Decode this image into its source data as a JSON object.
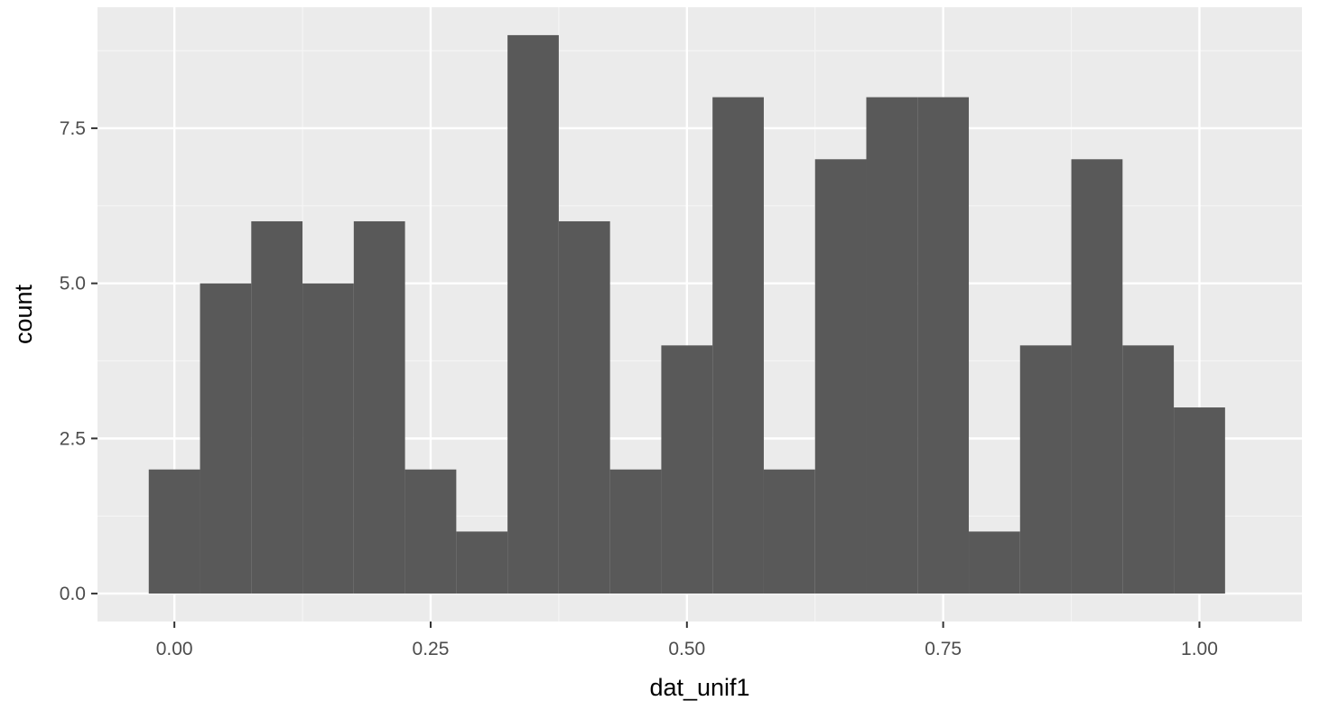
{
  "chart_data": {
    "type": "bar",
    "histogram": true,
    "xlabel": "dat_unif1",
    "ylabel": "count",
    "xlim": [
      -0.075,
      1.1
    ],
    "ylim": [
      -0.45,
      9.45
    ],
    "x_ticks": [
      0.0,
      0.25,
      0.5,
      0.75,
      1.0
    ],
    "x_tick_labels": [
      "0.00",
      "0.25",
      "0.50",
      "0.75",
      "1.00"
    ],
    "y_ticks": [
      0.0,
      2.5,
      5.0,
      7.5
    ],
    "y_tick_labels": [
      "0.0",
      "2.5",
      "5.0",
      "7.5"
    ],
    "bin_width": 0.05,
    "bins": [
      {
        "x0": -0.025,
        "x1": 0.025,
        "count": 2
      },
      {
        "x0": 0.025,
        "x1": 0.075,
        "count": 5
      },
      {
        "x0": 0.075,
        "x1": 0.125,
        "count": 6
      },
      {
        "x0": 0.125,
        "x1": 0.175,
        "count": 5
      },
      {
        "x0": 0.175,
        "x1": 0.225,
        "count": 6
      },
      {
        "x0": 0.225,
        "x1": 0.275,
        "count": 2
      },
      {
        "x0": 0.275,
        "x1": 0.325,
        "count": 1
      },
      {
        "x0": 0.325,
        "x1": 0.375,
        "count": 9
      },
      {
        "x0": 0.375,
        "x1": 0.425,
        "count": 6
      },
      {
        "x0": 0.425,
        "x1": 0.475,
        "count": 2
      },
      {
        "x0": 0.475,
        "x1": 0.525,
        "count": 4
      },
      {
        "x0": 0.525,
        "x1": 0.575,
        "count": 8
      },
      {
        "x0": 0.575,
        "x1": 0.625,
        "count": 2
      },
      {
        "x0": 0.625,
        "x1": 0.675,
        "count": 7
      },
      {
        "x0": 0.675,
        "x1": 0.725,
        "count": 8
      },
      {
        "x0": 0.725,
        "x1": 0.775,
        "count": 8
      },
      {
        "x0": 0.775,
        "x1": 0.825,
        "count": 1
      },
      {
        "x0": 0.825,
        "x1": 0.875,
        "count": 4
      },
      {
        "x0": 0.875,
        "x1": 0.925,
        "count": 7
      },
      {
        "x0": 0.925,
        "x1": 0.975,
        "count": 4
      },
      {
        "x0": 0.975,
        "x1": 1.025,
        "count": 3
      }
    ],
    "grid": true,
    "colors": {
      "panel_background": "#ebebeb",
      "grid_major": "#ffffff",
      "grid_minor": "#f5f5f5",
      "bar_fill": "#595959",
      "tick_label": "#4d4d4d",
      "tick_mark": "#333333",
      "axis_title": "#000000"
    }
  }
}
